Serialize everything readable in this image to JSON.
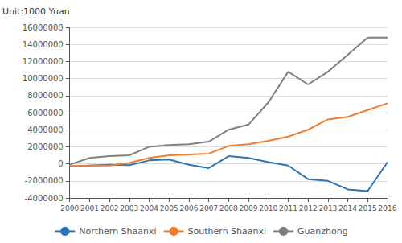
{
  "chart_data": {
    "type": "line",
    "ylabel": "Unit:1000 Yuan",
    "x": [
      2000,
      2001,
      2002,
      2003,
      2004,
      2005,
      2006,
      2007,
      2008,
      2009,
      2010,
      2011,
      2012,
      2013,
      2014,
      2015,
      2016
    ],
    "series": [
      {
        "name": "Northern Shaanxi",
        "color": "#2e75b6",
        "values": [
          -300000,
          -200000,
          -100000,
          -150000,
          400000,
          500000,
          -100000,
          -500000,
          900000,
          700000,
          200000,
          -200000,
          -1800000,
          -2000000,
          -3000000,
          -3200000,
          200000
        ]
      },
      {
        "name": "Southern Shaanxi",
        "color": "#ed7d31",
        "values": [
          -300000,
          -200000,
          -200000,
          100000,
          700000,
          1000000,
          1100000,
          1200000,
          2100000,
          2300000,
          2700000,
          3200000,
          4000000,
          5200000,
          5500000,
          6300000,
          7100000
        ]
      },
      {
        "name": "Guanzhong",
        "color": "#808080",
        "values": [
          -100000,
          700000,
          900000,
          1000000,
          2000000,
          2200000,
          2300000,
          2600000,
          4000000,
          4600000,
          7200000,
          10800000,
          9300000,
          10800000,
          12800000,
          14800000,
          14800000
        ]
      }
    ],
    "xlim": [
      2000,
      2016
    ],
    "xticks": [
      2000,
      2001,
      2002,
      2003,
      2004,
      2005,
      2006,
      2007,
      2008,
      2009,
      2010,
      2011,
      2012,
      2013,
      2014,
      2015,
      2016
    ],
    "ylim": [
      -4000000,
      16000000
    ],
    "yticks": [
      -4000000,
      -2000000,
      0,
      2000000,
      4000000,
      6000000,
      8000000,
      10000000,
      12000000,
      14000000,
      16000000
    ],
    "grid": true,
    "legend": "bottom"
  }
}
